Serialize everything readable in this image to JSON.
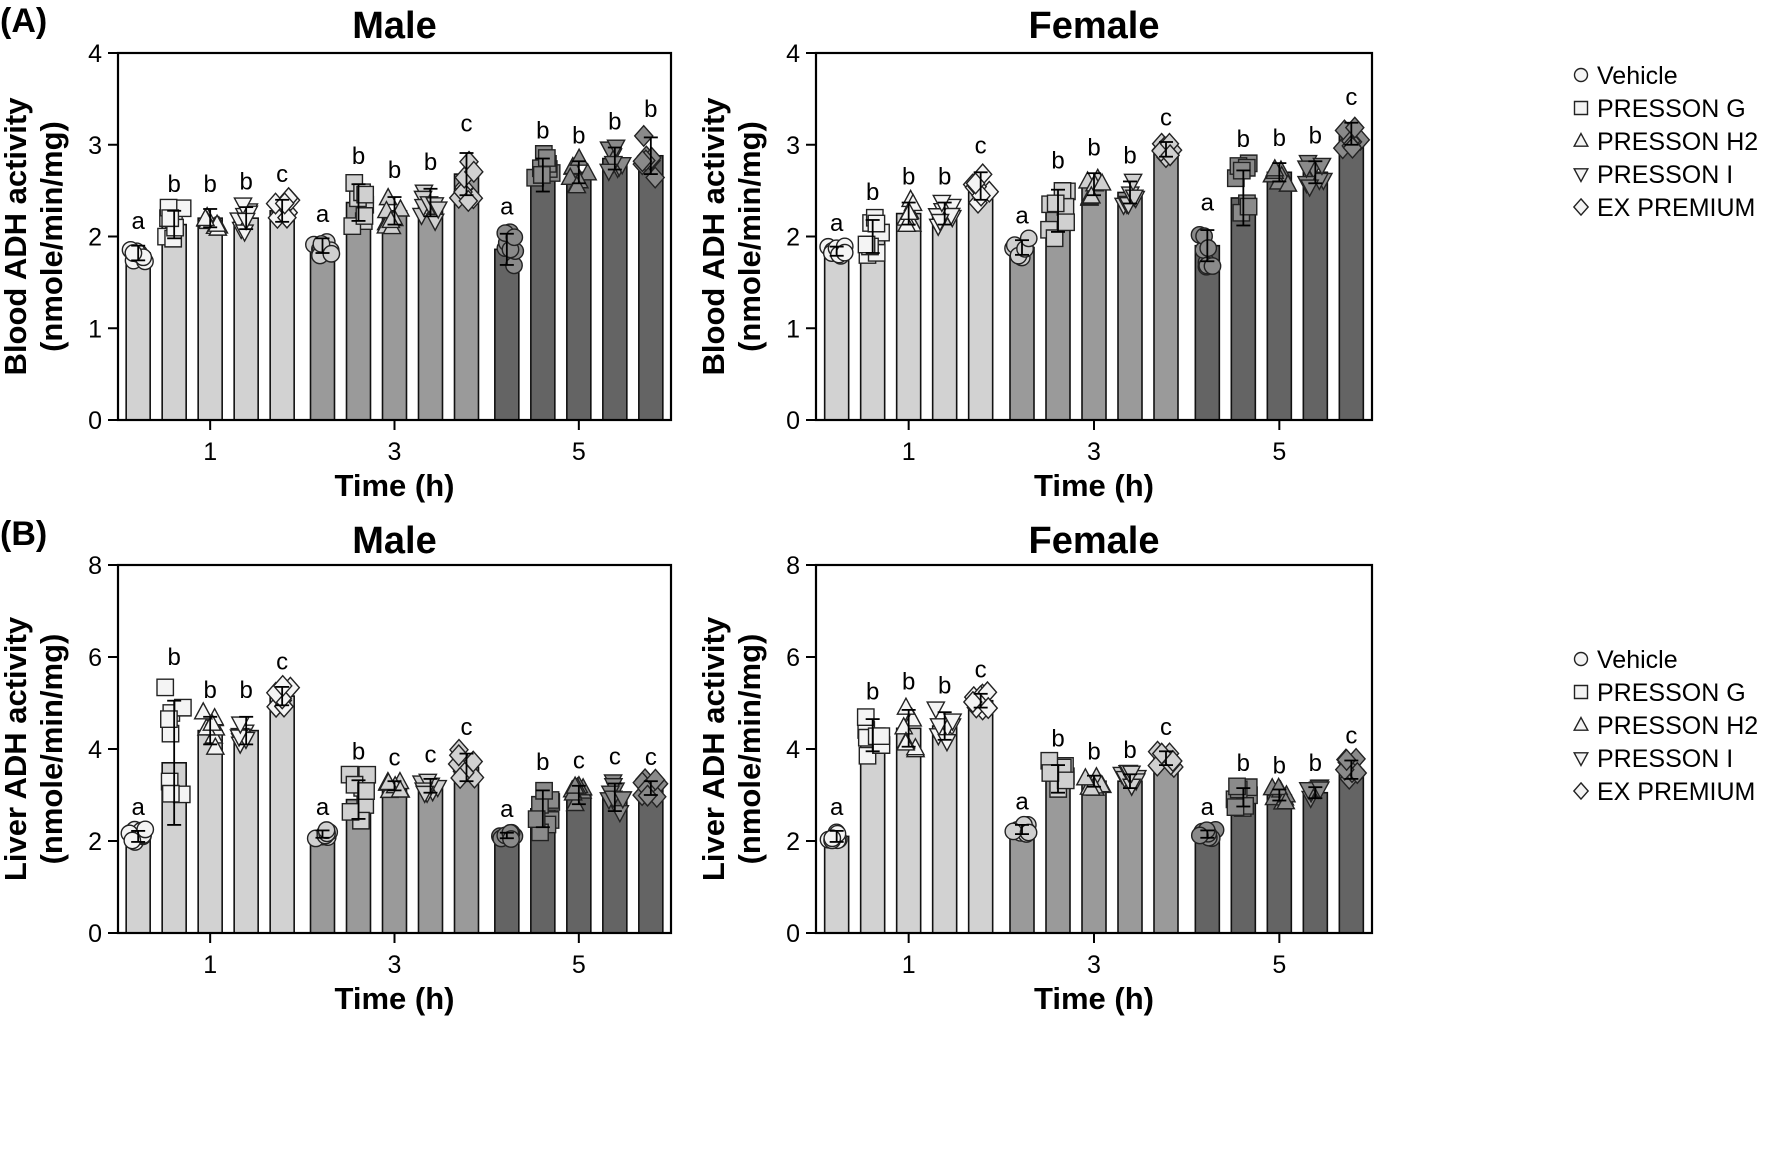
{
  "chart_data": [
    {
      "panel_label": "(A)",
      "type": "bar",
      "title": "Male",
      "xlabel": "Time (h)",
      "ylabel_line1": "Blood ADH activity",
      "ylabel_line2": "(nmole/min/mg)",
      "ylim": [
        0,
        4
      ],
      "yticks": [
        "0",
        "1",
        "2",
        "3",
        "4"
      ],
      "categories": [
        "1",
        "3",
        "5"
      ],
      "series": [
        {
          "name": "Vehicle",
          "values": [
            1.82,
            1.9,
            1.86
          ],
          "errors": [
            0.08,
            0.08,
            0.17
          ],
          "letters": [
            "a",
            "a",
            "a"
          ]
        },
        {
          "name": "PRESSON G",
          "values": [
            2.13,
            2.37,
            2.67
          ],
          "errors": [
            0.15,
            0.2,
            0.18
          ],
          "letters": [
            "b",
            "b",
            "b"
          ]
        },
        {
          "name": "PRESSON H2",
          "values": [
            2.2,
            2.28,
            2.7
          ],
          "errors": [
            0.1,
            0.15,
            0.12
          ],
          "letters": [
            "b",
            "b",
            "b"
          ]
        },
        {
          "name": "PRESSON I",
          "values": [
            2.2,
            2.37,
            2.85
          ],
          "errors": [
            0.12,
            0.15,
            0.12
          ],
          "letters": [
            "b",
            "b",
            "b"
          ]
        },
        {
          "name": "EX PREMIUM",
          "values": [
            2.28,
            2.68,
            2.88
          ],
          "errors": [
            0.12,
            0.23,
            0.2
          ],
          "letters": [
            "c",
            "c",
            "b"
          ]
        }
      ]
    },
    {
      "type": "bar",
      "title": "Female",
      "xlabel": "Time (h)",
      "ylabel_line1": "Blood ADH activity",
      "ylabel_line2": "(nmole/min/mg)",
      "ylim": [
        0,
        4
      ],
      "yticks": [
        "0",
        "1",
        "2",
        "3",
        "4"
      ],
      "categories": [
        "1",
        "3",
        "5"
      ],
      "series": [
        {
          "name": "Vehicle",
          "values": [
            1.84,
            1.88,
            1.9
          ],
          "errors": [
            0.05,
            0.08,
            0.17
          ],
          "letters": [
            "a",
            "a",
            "a"
          ]
        },
        {
          "name": "PRESSON G",
          "values": [
            2.0,
            2.28,
            2.42
          ],
          "errors": [
            0.18,
            0.23,
            0.3
          ],
          "letters": [
            "b",
            "b",
            "b"
          ]
        },
        {
          "name": "PRESSON H2",
          "values": [
            2.25,
            2.57,
            2.7
          ],
          "errors": [
            0.12,
            0.12,
            0.1
          ],
          "letters": [
            "b",
            "b",
            "b"
          ]
        },
        {
          "name": "PRESSON I",
          "values": [
            2.25,
            2.48,
            2.7
          ],
          "errors": [
            0.12,
            0.12,
            0.12
          ],
          "letters": [
            "b",
            "b",
            "b"
          ]
        },
        {
          "name": "EX PREMIUM",
          "values": [
            2.55,
            2.95,
            3.12
          ],
          "errors": [
            0.15,
            0.08,
            0.12
          ],
          "letters": [
            "c",
            "c",
            "c"
          ]
        }
      ]
    },
    {
      "panel_label": "(B)",
      "type": "bar",
      "title": "Male",
      "xlabel": "Time (h)",
      "ylabel_line1": "Liver ADH activity",
      "ylabel_line2": "(nmole/min/mg)",
      "ylim": [
        0,
        8
      ],
      "yticks": [
        "0",
        "2",
        "4",
        "6",
        "8"
      ],
      "categories": [
        "1",
        "3",
        "5"
      ],
      "series": [
        {
          "name": "Vehicle",
          "values": [
            2.1,
            2.15,
            2.12
          ],
          "errors": [
            0.12,
            0.08,
            0.06
          ],
          "letters": [
            "a",
            "a",
            "a"
          ]
        },
        {
          "name": "PRESSON G",
          "values": [
            3.7,
            2.9,
            2.7
          ],
          "errors": [
            1.35,
            0.42,
            0.4
          ],
          "letters": [
            "b",
            "b",
            "b"
          ]
        },
        {
          "name": "PRESSON H2",
          "values": [
            4.4,
            3.2,
            3.0
          ],
          "errors": [
            0.3,
            0.1,
            0.2
          ],
          "letters": [
            "b",
            "c",
            "c"
          ]
        },
        {
          "name": "PRESSON I",
          "values": [
            4.4,
            3.2,
            2.95
          ],
          "errors": [
            0.3,
            0.15,
            0.3
          ],
          "letters": [
            "b",
            "c",
            "c"
          ]
        },
        {
          "name": "EX PREMIUM",
          "values": [
            5.15,
            3.6,
            3.15
          ],
          "errors": [
            0.2,
            0.3,
            0.15
          ],
          "letters": [
            "c",
            "c",
            "c"
          ]
        }
      ]
    },
    {
      "type": "bar",
      "title": "Female",
      "xlabel": "Time (h)",
      "ylabel_line1": "Liver ADH activity",
      "ylabel_line2": "(nmole/min/mg)",
      "ylim": [
        0,
        8
      ],
      "yticks": [
        "0",
        "2",
        "4",
        "6",
        "8"
      ],
      "categories": [
        "1",
        "3",
        "5"
      ],
      "series": [
        {
          "name": "Vehicle",
          "values": [
            2.1,
            2.25,
            2.15
          ],
          "errors": [
            0.12,
            0.1,
            0.08
          ],
          "letters": [
            "a",
            "a",
            "a"
          ]
        },
        {
          "name": "PRESSON G",
          "values": [
            4.3,
            3.35,
            2.95
          ],
          "errors": [
            0.35,
            0.3,
            0.2
          ],
          "letters": [
            "b",
            "b",
            "b"
          ]
        },
        {
          "name": "PRESSON H2",
          "values": [
            4.45,
            3.3,
            3.0
          ],
          "errors": [
            0.4,
            0.12,
            0.12
          ],
          "letters": [
            "b",
            "b",
            "b"
          ]
        },
        {
          "name": "PRESSON I",
          "values": [
            4.5,
            3.3,
            3.05
          ],
          "errors": [
            0.3,
            0.15,
            0.12
          ],
          "letters": [
            "b",
            "b",
            "b"
          ]
        },
        {
          "name": "EX PREMIUM",
          "values": [
            5.05,
            3.8,
            3.55
          ],
          "errors": [
            0.15,
            0.15,
            0.2
          ],
          "letters": [
            "c",
            "c",
            "c"
          ]
        }
      ]
    }
  ],
  "legend": {
    "entries": [
      "Vehicle",
      "PRESSON G",
      "PRESSON H2",
      "PRESSON I",
      "EX PREMIUM"
    ],
    "markers": [
      "circle",
      "square",
      "triangle-up",
      "triangle-down",
      "diamond"
    ],
    "placement": "right"
  },
  "colors": {
    "time_1": "#d2d2d2",
    "time_3": "#9a9a9a",
    "time_5": "#646464",
    "marker_fill_light": "#f4f4f4",
    "marker_fill_mid": "#d0d0d0",
    "marker_fill_dark": "#8a8a8a",
    "axis": "#000000"
  }
}
